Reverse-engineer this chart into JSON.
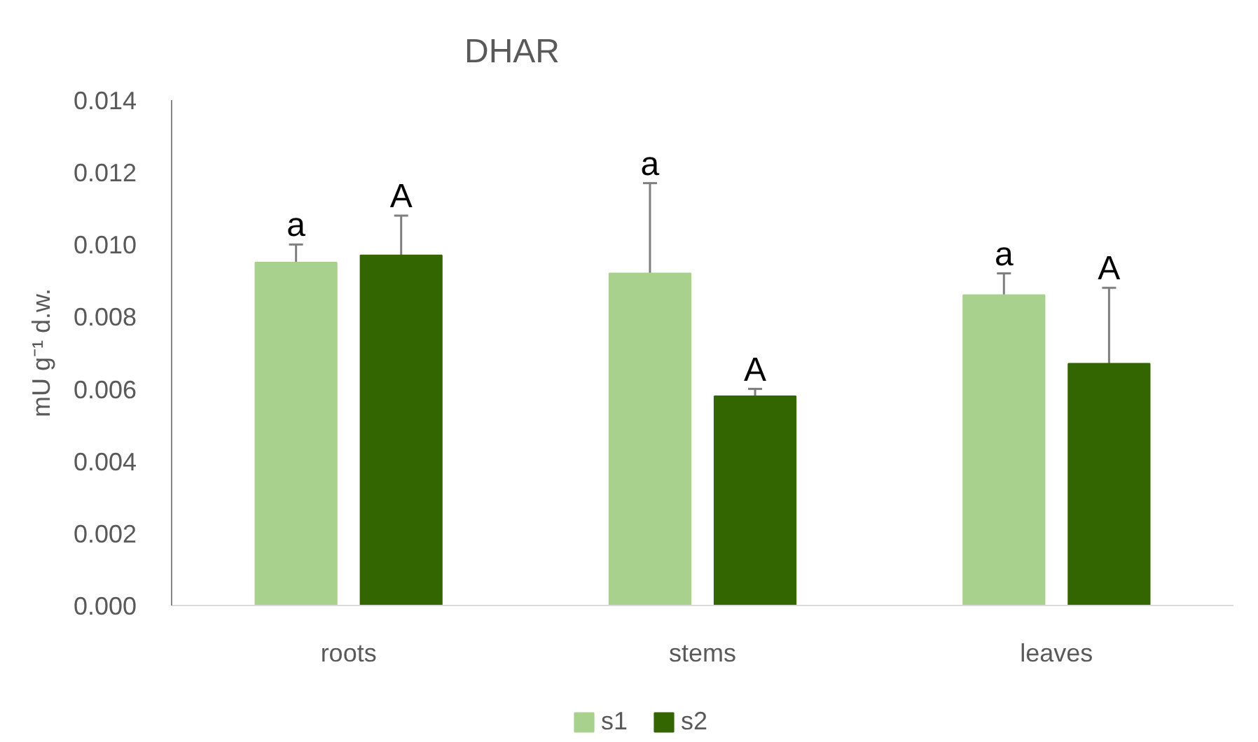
{
  "chart_data": {
    "type": "bar",
    "title": "DHAR",
    "ylabel": "mU g⁻¹ d.w.",
    "categories": [
      "roots",
      "stems",
      "leaves"
    ],
    "series": [
      {
        "name": "s1",
        "color": "#a9d18e",
        "values": [
          0.0095,
          0.0092,
          0.0086
        ],
        "errors": [
          [
            0.0095,
            0.01
          ],
          [
            0.0092,
            0.0117
          ],
          [
            0.0086,
            0.0092
          ]
        ],
        "value_labels": [
          "a",
          "a",
          "a"
        ]
      },
      {
        "name": "s2",
        "color": "#336600",
        "values": [
          0.0097,
          0.0058,
          0.0067
        ],
        "errors": [
          [
            0.0097,
            0.0108
          ],
          [
            0.0058,
            0.006
          ],
          [
            0.0067,
            0.0088
          ]
        ],
        "value_labels": [
          "A",
          "A",
          "A"
        ]
      }
    ],
    "ylim": [
      0,
      0.014
    ],
    "yticks": [
      {
        "value": 0,
        "label": "0.000"
      },
      0.002,
      0.004,
      0.006,
      0.008,
      {
        "value": 0.01,
        "label": "0.010"
      },
      0.012,
      0.014
    ],
    "grid": false,
    "legend": "bottom"
  }
}
